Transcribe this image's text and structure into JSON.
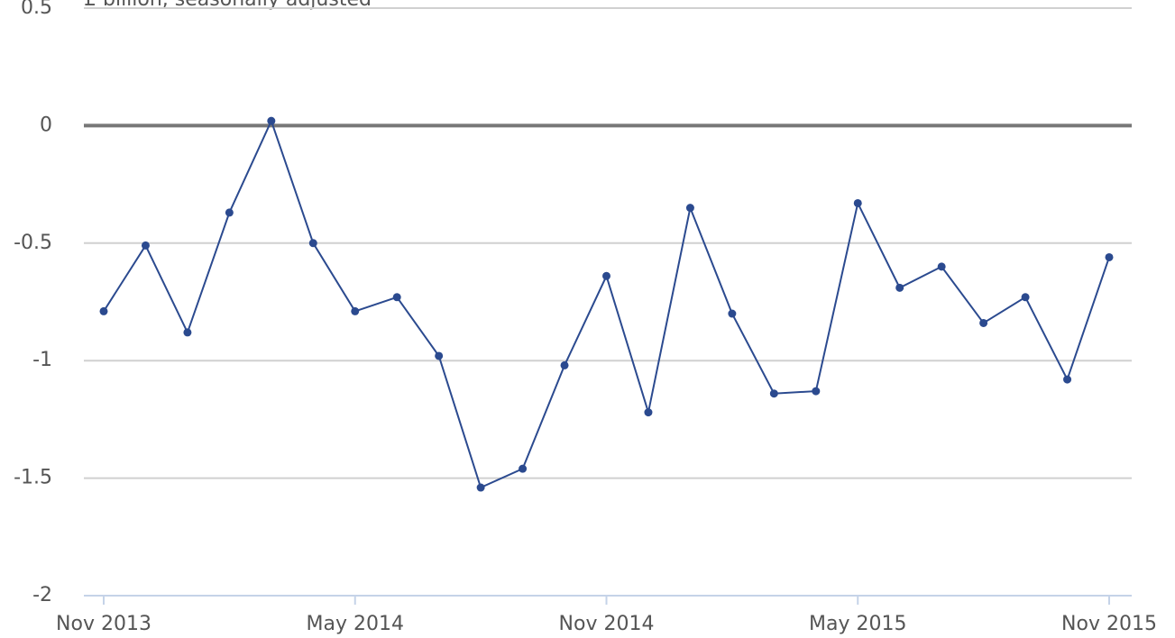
{
  "chart_data": {
    "type": "line",
    "subtitle": "£ billion, seasonally adjusted",
    "categories": [
      "Nov 2013",
      null,
      null,
      null,
      null,
      null,
      "May 2014",
      null,
      null,
      null,
      null,
      null,
      "Nov 2014",
      null,
      null,
      null,
      null,
      null,
      "May 2015",
      null,
      null,
      null,
      null,
      null,
      "Nov 2015"
    ],
    "series": [
      {
        "color": "#2b4a8f",
        "values": [
          -0.79,
          -0.51,
          -0.88,
          -0.37,
          0.02,
          -0.5,
          -0.79,
          -0.73,
          -0.98,
          -1.54,
          -1.46,
          -1.02,
          -0.64,
          -1.22,
          -0.35,
          -0.8,
          -1.14,
          -1.13,
          -0.33,
          -0.69,
          -0.6,
          -0.84,
          -0.73,
          -1.08,
          -0.56
        ]
      }
    ],
    "ylim": [
      -2,
      0.5
    ],
    "yticks": [
      -2,
      -1.5,
      -1,
      -0.5,
      0,
      0.5
    ],
    "grid": true
  }
}
